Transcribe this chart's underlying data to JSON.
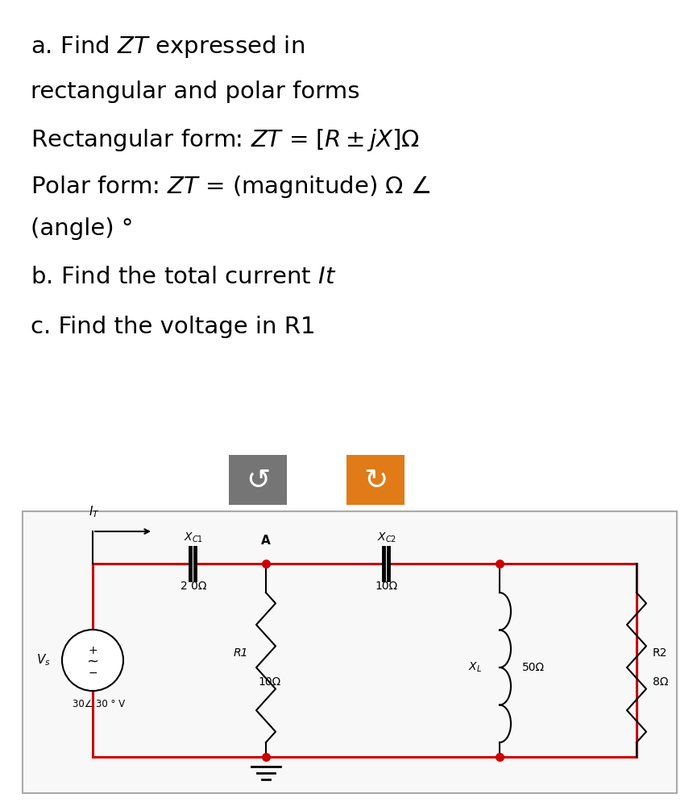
{
  "bg_color": "#ffffff",
  "line1": "a. Find $\\mathit{ZT}$ expressed in",
  "line2": "rectangular and polar forms",
  "line3": "Rectangular form: $\\mathit{ZT}$ = $[R \\pm jX]\\Omega$",
  "line4": "Polar form: $\\mathit{ZT}$ = (magnitude) $\\Omega$ $\\angle$",
  "line5": "(angle) °",
  "line6": "b. Find the total current $\\mathit{It}$",
  "line7": "c. Find the voltage in R1",
  "text_fontsize": 21,
  "btn1_color": "#757575",
  "btn2_color": "#e07b18",
  "circuit_line_color": "#cc0000",
  "circuit_bg": "#ffffff",
  "circuit_border": "#aaaaaa",
  "xc1_label": "$X_{C1}$",
  "xc1_val": "2 0Ω",
  "xc2_label": "$X_{C2}$",
  "xc2_val": "10Ω",
  "r1_label": "R1",
  "r1_val": "10Ω",
  "xl_label": "$X_L$",
  "xl_val": "50Ω",
  "r2_label": "R2",
  "r2_val": "8Ω",
  "vs_label": "$V_s$",
  "vs_val": "30∠ 30 ° V",
  "node_a": "A",
  "it_label": "$I_T$"
}
